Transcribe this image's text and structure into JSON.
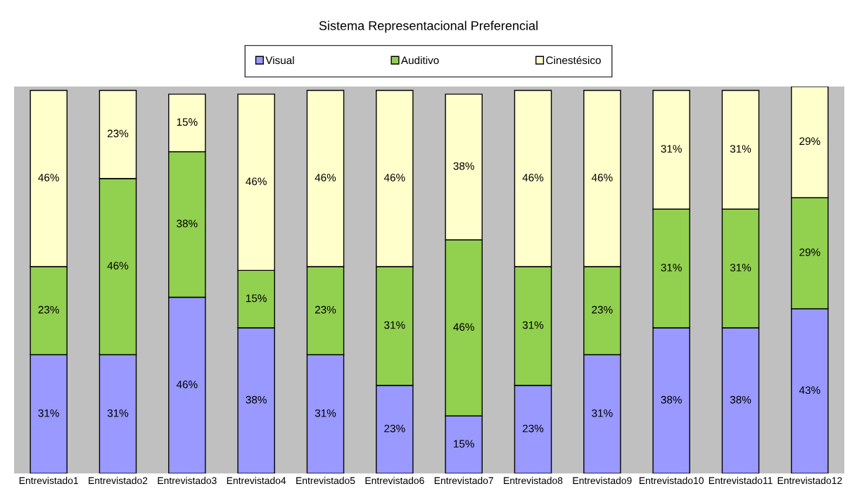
{
  "chart_data": {
    "type": "bar",
    "stacked": true,
    "title": "Sistema Representacional Preferencial",
    "categories": [
      "Entrevistado1",
      "Entrevistado2",
      "Entrevistado3",
      "Entrevistado4",
      "Entrevistado5",
      "Entrevistado6",
      "Entrevistado7",
      "Entrevistado8",
      "Entrevistado9",
      "Entrevistado10",
      "Entrevistado11",
      "Entrevistado12"
    ],
    "series": [
      {
        "name": "Visual",
        "color": "#9999ff",
        "values": [
          31,
          31,
          46,
          38,
          31,
          23,
          15,
          23,
          31,
          38,
          38,
          43
        ],
        "value_labels": [
          "31%",
          "31%",
          "46%",
          "38%",
          "31%",
          "23%",
          "15%",
          "23%",
          "31%",
          "38%",
          "38%",
          "43%"
        ]
      },
      {
        "name": "Auditivo",
        "color": "#92d050",
        "values": [
          23,
          46,
          38,
          15,
          23,
          31,
          46,
          31,
          23,
          31,
          31,
          29
        ],
        "value_labels": [
          "23%",
          "46%",
          "38%",
          "15%",
          "23%",
          "31%",
          "46%",
          "31%",
          "23%",
          "31%",
          "31%",
          "29%"
        ]
      },
      {
        "name": "Cinestésico",
        "color": "#ffffcc",
        "values": [
          46,
          23,
          15,
          46,
          46,
          46,
          38,
          46,
          46,
          31,
          31,
          29
        ],
        "value_labels": [
          "46%",
          "23%",
          "15%",
          "46%",
          "46%",
          "46%",
          "38%",
          "46%",
          "46%",
          "31%",
          "31%",
          "29%"
        ]
      }
    ],
    "legend": "top",
    "grid": false,
    "tick_labels": "x"
  }
}
